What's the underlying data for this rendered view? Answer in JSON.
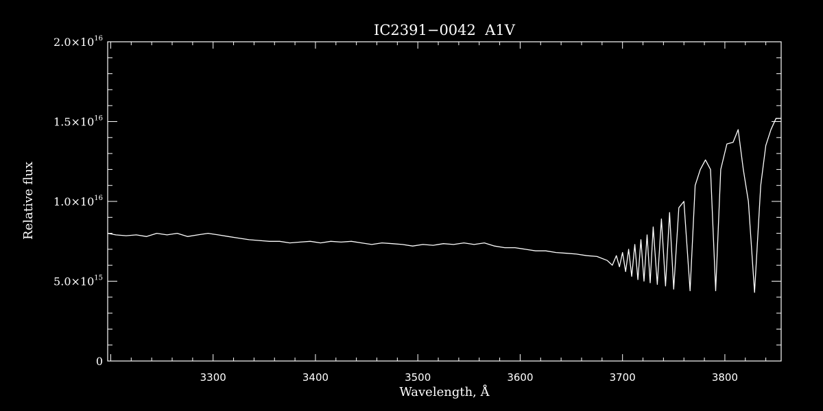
{
  "chart_data": {
    "type": "line",
    "title": "IC2391−0042  A1V",
    "xlabel": "Wavelength, Å",
    "ylabel": "Relative flux",
    "xlim": [
      3197,
      3855
    ],
    "ylim": [
      0,
      2e+16
    ],
    "x_ticks": [
      3300,
      3400,
      3500,
      3600,
      3700,
      3800
    ],
    "x_tick_labels": [
      "3300",
      "3400",
      "3500",
      "3600",
      "3700",
      "3800"
    ],
    "y_ticks": [
      {
        "value": 0,
        "mantissa": "0",
        "exponent": ""
      },
      {
        "value": 5000000000000000.0,
        "mantissa": "5.0×10",
        "exponent": "15"
      },
      {
        "value": 1e+16,
        "mantissa": "1.0×10",
        "exponent": "16"
      },
      {
        "value": 1.5e+16,
        "mantissa": "1.5×10",
        "exponent": "16"
      },
      {
        "value": 2e+16,
        "mantissa": "2.0×10",
        "exponent": "16"
      }
    ],
    "grid": false,
    "colors": {
      "background": "#000000",
      "foreground": "#ffffff"
    },
    "series": [
      {
        "x": [
          3197,
          3205,
          3215,
          3225,
          3235,
          3245,
          3255,
          3265,
          3275,
          3285,
          3295,
          3305,
          3315,
          3325,
          3335,
          3345,
          3355,
          3365,
          3375,
          3385,
          3395,
          3405,
          3415,
          3425,
          3435,
          3445,
          3455,
          3465,
          3475,
          3485,
          3495,
          3505,
          3515,
          3525,
          3535,
          3545,
          3555,
          3565,
          3575,
          3585,
          3595,
          3605,
          3615,
          3625,
          3635,
          3645,
          3655,
          3665,
          3675,
          3685,
          3690,
          3694,
          3697,
          3700,
          3703,
          3706,
          3709,
          3712,
          3715,
          3718,
          3721,
          3724,
          3727,
          3730,
          3734,
          3738,
          3742,
          3746,
          3750,
          3755,
          3760,
          3766,
          3771,
          3776,
          3781,
          3786,
          3791,
          3796,
          3802,
          3808,
          3813,
          3818,
          3823,
          3829,
          3835,
          3840,
          3845,
          3850,
          3855
        ],
        "y": [
          8000000000000000.0,
          7900000000000000.0,
          7850000000000000.0,
          7900000000000000.0,
          7800000000000000.0,
          8000000000000000.0,
          7900000000000000.0,
          8000000000000000.0,
          7800000000000000.0,
          7900000000000000.0,
          8000000000000000.0,
          7900000000000000.0,
          7800000000000000.0,
          7700000000000000.0,
          7600000000000000.0,
          7550000000000000.0,
          7500000000000000.0,
          7500000000000000.0,
          7400000000000000.0,
          7450000000000000.0,
          7500000000000000.0,
          7400000000000000.0,
          7500000000000000.0,
          7450000000000000.0,
          7500000000000000.0,
          7400000000000000.0,
          7300000000000000.0,
          7400000000000000.0,
          7350000000000000.0,
          7300000000000000.0,
          7200000000000000.0,
          7300000000000000.0,
          7250000000000000.0,
          7350000000000000.0,
          7300000000000000.0,
          7400000000000000.0,
          7300000000000000.0,
          7400000000000000.0,
          7200000000000000.0,
          7100000000000000.0,
          7100000000000000.0,
          7000000000000000.0,
          6900000000000000.0,
          6900000000000000.0,
          6800000000000000.0,
          6750000000000000.0,
          6700000000000000.0,
          6600000000000000.0,
          6550000000000000.0,
          6300000000000000.0,
          6000000000000000.0,
          6600000000000000.0,
          5900000000000000.0,
          6800000000000000.0,
          5600000000000000.0,
          7000000000000000.0,
          5300000000000000.0,
          7300000000000000.0,
          5100000000000000.0,
          7600000000000000.0,
          5000000000000000.0,
          7900000000000000.0,
          4900000000000000.0,
          8400000000000000.0,
          4800000000000000.0,
          8900000000000000.0,
          4700000000000000.0,
          9300000000000000.0,
          4500000000000000.0,
          9600000000000000.0,
          1e+16,
          4400000000000000.0,
          1.1e+16,
          1.2e+16,
          1.26e+16,
          1.2e+16,
          4400000000000000.0,
          1.2e+16,
          1.36e+16,
          1.37e+16,
          1.45e+16,
          1.2e+16,
          1e+16,
          4300000000000000.0,
          1.1e+16,
          1.35e+16,
          1.45e+16,
          1.52e+16,
          1.52e+16
        ]
      }
    ]
  }
}
